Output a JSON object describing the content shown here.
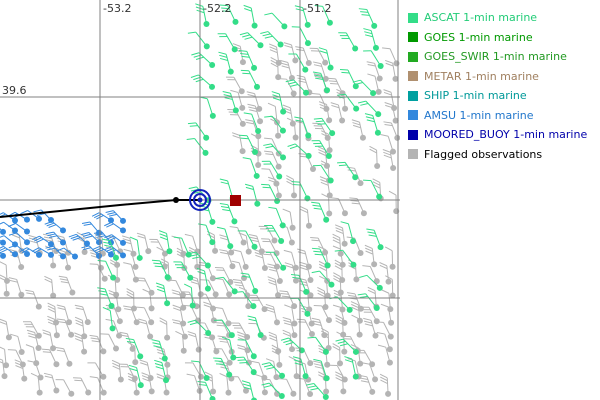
{
  "map": {
    "grid_labels": {
      "longitude": [
        "-53.2",
        "-52.2",
        "-51.2"
      ],
      "latitude": [
        "39.6"
      ]
    },
    "legend": [
      {
        "label": "ASCAT 1-min marine",
        "color": "#33dd88",
        "text_color": "#22cc77"
      },
      {
        "label": "GOES 1-min marine",
        "color": "#009900",
        "text_color": "#009900"
      },
      {
        "label": "GOES_SWIR 1-min marine",
        "color": "#22aa22",
        "text_color": "#229922"
      },
      {
        "label": "METAR 1-min marine",
        "color": "#b09070",
        "text_color": "#a08060"
      },
      {
        "label": "SHIP 1-min marine",
        "color": "#00a0a0",
        "text_color": "#009999"
      },
      {
        "label": "AMSU 1-min marine",
        "color": "#3388dd",
        "text_color": "#2277cc"
      },
      {
        "label": "MOORED_BUOY 1-min marine",
        "color": "#0000aa",
        "text_color": "#0000aa"
      },
      {
        "label": "Flagged observations",
        "color": "#b4b4b4",
        "text_color": "#000000"
      }
    ]
  }
}
